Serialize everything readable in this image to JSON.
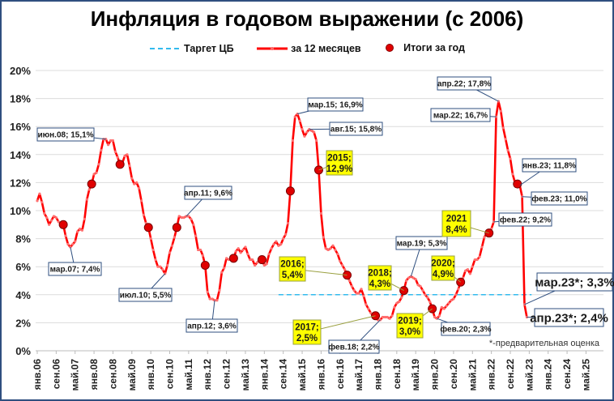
{
  "chart_data": {
    "type": "line",
    "title": "Инфляция в годовом выражении (с 2006)",
    "legend": {
      "placement": "top",
      "entries": [
        "Таргет ЦБ",
        "за 12 месяцев",
        "Итоги за год"
      ]
    },
    "footnote": "*-предварительная оценка",
    "ylim": [
      0,
      20
    ],
    "y_ticks": [
      "0%",
      "2%",
      "4%",
      "6%",
      "8%",
      "10%",
      "12%",
      "14%",
      "16%",
      "18%",
      "20%"
    ],
    "x_range": [
      "2006-01",
      "2025-12"
    ],
    "x_tick_labels": [
      "янв.06",
      "сен.06",
      "май.07",
      "янв.08",
      "сен.08",
      "май.09",
      "янв.10",
      "сен.10",
      "май.11",
      "янв.12",
      "сен.12",
      "май.13",
      "янв.14",
      "сен.14",
      "май.15",
      "янв.16",
      "сен.16",
      "май.17",
      "янв.18",
      "сен.18",
      "май.19",
      "янв.20",
      "сен.20",
      "май.21",
      "янв.22",
      "сен.22",
      "май.23",
      "янв.24",
      "сен.24",
      "май.25"
    ],
    "grid": true,
    "colors": {
      "monthly": "#ff0000",
      "target": "#33bbee",
      "annual": "#e00000",
      "frame": "#2f4f7f",
      "highlight_box": "#ffff00",
      "callout_border": "#2f4f7f"
    },
    "target": {
      "name": "Таргет ЦБ",
      "value": 4,
      "from": "2014-07",
      "to": "2023-06"
    },
    "monthly": {
      "name": "за 12 месяцев",
      "start": "2006-01",
      "values": [
        10.7,
        11.2,
        10.6,
        9.8,
        9.5,
        9.0,
        9.3,
        9.6,
        9.5,
        9.2,
        9.1,
        9.0,
        8.2,
        7.6,
        7.4,
        7.6,
        7.8,
        8.5,
        8.7,
        8.6,
        9.4,
        10.8,
        11.5,
        11.9,
        12.6,
        12.7,
        13.3,
        14.3,
        15.1,
        15.1,
        14.7,
        15.0,
        15.0,
        14.2,
        13.8,
        13.3,
        13.4,
        13.9,
        14.0,
        13.2,
        12.3,
        11.9,
        12.0,
        11.6,
        10.7,
        9.7,
        9.1,
        8.8,
        8.0,
        7.2,
        6.5,
        6.0,
        6.0,
        5.8,
        5.5,
        6.1,
        7.0,
        7.5,
        8.1,
        8.8,
        9.6,
        9.5,
        9.5,
        9.6,
        9.6,
        9.4,
        9.0,
        8.2,
        7.2,
        7.2,
        6.8,
        6.1,
        4.2,
        3.7,
        3.7,
        3.6,
        3.6,
        4.3,
        5.6,
        5.9,
        6.6,
        6.5,
        6.5,
        6.6,
        7.1,
        7.3,
        7.0,
        7.2,
        7.4,
        6.9,
        6.5,
        6.5,
        6.1,
        6.3,
        6.5,
        6.5,
        6.1,
        6.2,
        6.9,
        7.3,
        7.6,
        7.8,
        7.5,
        7.6,
        8.0,
        8.3,
        9.1,
        11.4,
        15.0,
        16.7,
        16.9,
        16.4,
        15.8,
        15.3,
        15.6,
        15.8,
        15.7,
        15.6,
        15.0,
        12.9,
        9.8,
        8.1,
        7.3,
        7.2,
        7.3,
        7.5,
        7.2,
        6.9,
        6.4,
        6.1,
        5.8,
        5.4,
        5.0,
        4.6,
        4.3,
        4.1,
        4.1,
        4.4,
        3.9,
        3.3,
        3.0,
        2.7,
        2.5,
        2.5,
        2.2,
        2.2,
        2.4,
        2.4,
        2.4,
        2.3,
        2.5,
        3.1,
        3.4,
        3.5,
        3.8,
        4.3,
        5.0,
        5.2,
        5.3,
        5.2,
        5.1,
        4.7,
        4.6,
        4.3,
        4.0,
        3.8,
        3.5,
        3.0,
        2.4,
        2.3,
        2.5,
        3.1,
        3.0,
        3.2,
        3.4,
        3.6,
        3.7,
        4.0,
        4.4,
        4.9,
        5.2,
        5.7,
        5.8,
        5.5,
        6.0,
        6.5,
        6.5,
        6.7,
        7.4,
        8.1,
        8.4,
        8.4,
        8.7,
        9.2,
        16.7,
        17.8,
        17.1,
        15.9,
        15.1,
        14.3,
        13.7,
        12.6,
        12.0,
        11.9,
        11.8,
        11.0,
        3.3,
        2.4
      ]
    },
    "annual": {
      "name": "Итоги за год",
      "years": [
        2006,
        2007,
        2008,
        2009,
        2010,
        2011,
        2012,
        2013,
        2014,
        2015,
        2016,
        2017,
        2018,
        2019,
        2020,
        2021,
        2022
      ],
      "values": [
        9.0,
        11.9,
        13.3,
        8.8,
        8.8,
        6.1,
        6.6,
        6.5,
        11.4,
        12.9,
        5.4,
        2.5,
        4.3,
        3.0,
        4.9,
        8.4,
        11.9
      ]
    },
    "annotations": [
      {
        "text": "июн.08; 15,1%",
        "date": "2008-06",
        "value": 15.1,
        "style": "callout"
      },
      {
        "text": "мар.07; 7,4%",
        "date": "2007-03",
        "value": 7.4,
        "style": "callout"
      },
      {
        "text": "июл.10; 5,5%",
        "date": "2010-07",
        "value": 5.5,
        "style": "callout"
      },
      {
        "text": "апр.11; 9,6%",
        "date": "2011-04",
        "value": 9.6,
        "style": "callout"
      },
      {
        "text": "апр.12; 3,6%",
        "date": "2012-04",
        "value": 3.6,
        "style": "callout"
      },
      {
        "text": "мар.15; 16,9%",
        "date": "2015-03",
        "value": 16.9,
        "style": "callout"
      },
      {
        "text": "авг.15; 15,8%",
        "date": "2015-08",
        "value": 15.8,
        "style": "callout"
      },
      {
        "text": "2015;|12,9%",
        "date": "2015-12",
        "value": 12.9,
        "style": "year"
      },
      {
        "text": "2016;|5,4%",
        "date": "2016-12",
        "value": 5.4,
        "style": "year"
      },
      {
        "text": "2017;|2,5%",
        "date": "2017-12",
        "value": 2.5,
        "style": "year"
      },
      {
        "text": "фев.18; 2,2%",
        "date": "2018-02",
        "value": 2.2,
        "style": "callout"
      },
      {
        "text": "2018;|4,3%",
        "date": "2018-12",
        "value": 4.3,
        "style": "year"
      },
      {
        "text": "мар.19; 5,3%",
        "date": "2019-03",
        "value": 5.3,
        "style": "callout"
      },
      {
        "text": "2019;|3,0%",
        "date": "2019-12",
        "value": 3.0,
        "style": "year"
      },
      {
        "text": "2020;|4,9%",
        "date": "2020-12",
        "value": 4.9,
        "style": "year"
      },
      {
        "text": "фев.20; 2,3%",
        "date": "2020-02",
        "value": 2.3,
        "style": "callout"
      },
      {
        "text": "2021|8,4%",
        "date": "2021-12",
        "value": 8.4,
        "style": "year"
      },
      {
        "text": "апр.22; 17,8%",
        "date": "2022-04",
        "value": 17.8,
        "style": "callout"
      },
      {
        "text": "мар.22; 16,7%",
        "date": "2022-03",
        "value": 16.7,
        "style": "callout"
      },
      {
        "text": "фев.22; 9,2%",
        "date": "2022-02",
        "value": 9.2,
        "style": "callout"
      },
      {
        "text": "янв.23; 11,8%",
        "date": "2023-01",
        "value": 11.8,
        "style": "callout"
      },
      {
        "text": "фев.23; 11,0%",
        "date": "2023-02",
        "value": 11.0,
        "style": "callout"
      },
      {
        "text": "мар.23*; 3,3%",
        "date": "2023-03",
        "value": 3.3,
        "style": "large"
      },
      {
        "text": "апр.23*; 2,4%",
        "date": "2023-04",
        "value": 2.4,
        "style": "large"
      }
    ]
  }
}
